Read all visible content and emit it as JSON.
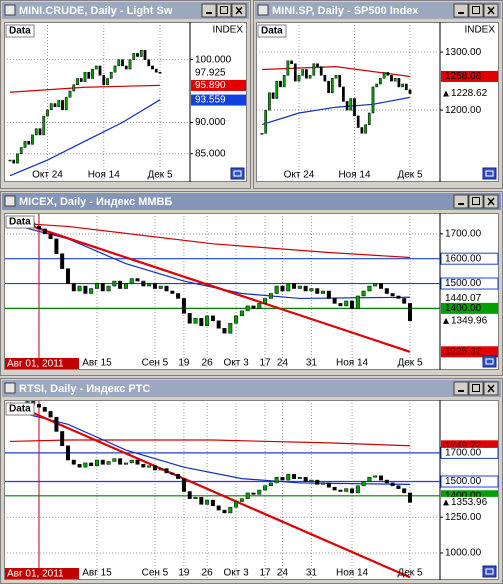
{
  "windows": [
    {
      "type": "candlestick",
      "title": "MINI.CRUDE, Daily - Light Sw",
      "data_label": "Data",
      "axis_header": "INDEX",
      "up_color": "#00a000",
      "down_color": "#000000",
      "ylim": [
        80.5,
        106
      ],
      "yticks": [
        {
          "value": 100,
          "label": "100.000"
        },
        {
          "value": 90,
          "label": "90.000"
        },
        {
          "value": 85,
          "label": "85.000"
        }
      ],
      "categories": [
        null,
        null,
        null,
        null,
        null,
        null,
        null,
        null,
        null,
        null,
        "Окт 24",
        null,
        null,
        null,
        null,
        null,
        null,
        null,
        null,
        null,
        null,
        null,
        null,
        null,
        null,
        "Ноя 14",
        null,
        null,
        null,
        null,
        null,
        null,
        null,
        null,
        null,
        null,
        null,
        null,
        null,
        null,
        "Дек 5"
      ],
      "closes": [
        84,
        83.5,
        85,
        86,
        87,
        86.5,
        88,
        89,
        88,
        91,
        92,
        93,
        92.5,
        93.5,
        92,
        94,
        95,
        96,
        97,
        96.5,
        98,
        97,
        98.5,
        99,
        97.5,
        96,
        97,
        98,
        99,
        100,
        99,
        98.5,
        100,
        101,
        100.5,
        101.5,
        100,
        99,
        98.5,
        98,
        97.9
      ],
      "ma": [
        {
          "color": "#d00000",
          "x": [
            0,
            20,
            40
          ],
          "values": [
            94.8,
            95.6,
            95.9
          ]
        },
        {
          "color": "#1030c0",
          "x": [
            0,
            10,
            20,
            30,
            40
          ],
          "values": [
            81.5,
            84,
            87,
            90,
            93.6
          ]
        }
      ],
      "levels": [],
      "trendlines": [],
      "tags": [
        {
          "value": 97.925,
          "label": "97.925",
          "bg": "#ffffff",
          "fg": "#000000"
        },
        {
          "value": 95.89,
          "label": "95.890",
          "bg": "#e00000",
          "fg": "#ffffff"
        },
        {
          "value": 93.559,
          "label": "93.559",
          "bg": "#1040e0",
          "fg": "#ffffff"
        }
      ]
    },
    {
      "type": "candlestick",
      "title": "MINI.SP, Daily - SP500 Index",
      "data_label": "Data",
      "axis_header": "INDEX",
      "up_color": "#00a000",
      "down_color": "#000000",
      "ylim": [
        1076,
        1352
      ],
      "yticks": [
        {
          "value": 1300,
          "label": "1300.00"
        },
        {
          "value": 1200,
          "label": "1200.00"
        }
      ],
      "categories": [
        null,
        null,
        null,
        null,
        null,
        null,
        null,
        null,
        null,
        null,
        "Окт 24",
        null,
        null,
        null,
        null,
        null,
        null,
        null,
        null,
        null,
        null,
        null,
        null,
        null,
        null,
        "Ноя 14",
        null,
        null,
        null,
        null,
        null,
        null,
        null,
        null,
        null,
        null,
        null,
        null,
        null,
        null,
        "Дек 5"
      ],
      "closes": [
        1160,
        1200,
        1230,
        1220,
        1250,
        1240,
        1260,
        1285,
        1280,
        1250,
        1260,
        1270,
        1255,
        1260,
        1280,
        1275,
        1260,
        1250,
        1230,
        1255,
        1260,
        1240,
        1215,
        1200,
        1220,
        1190,
        1170,
        1160,
        1175,
        1195,
        1240,
        1245,
        1255,
        1265,
        1260,
        1250,
        1255,
        1240,
        1245,
        1235,
        1228.62
      ],
      "ma": [
        {
          "color": "#d00000",
          "x": [
            0,
            20,
            40
          ],
          "values": [
            1270,
            1275,
            1258
          ]
        },
        {
          "color": "#1030c0",
          "x": [
            0,
            10,
            20,
            30,
            40
          ],
          "values": [
            1175,
            1195,
            1205,
            1210,
            1222
          ]
        }
      ],
      "levels": [],
      "trendlines": [],
      "tags": [
        {
          "value": 1258.08,
          "label": "1258.08",
          "bg": "#e00000",
          "fg": "#000000"
        },
        {
          "value": 1228.62,
          "label": "1228.62",
          "bg": "#ffffff",
          "fg": "#000000",
          "arrow": true
        }
      ]
    },
    {
      "type": "candlestick",
      "title": "MICEX, Daily - Индекс ММВБ",
      "data_label": "Data",
      "marker_color": "#c00000",
      "up_color": "#00a000",
      "down_color": "#000000",
      "ylim": [
        1152,
        1784
      ],
      "yticks": [
        {
          "value": 1700,
          "label": "1700.00"
        }
      ],
      "categories": [
        null,
        null,
        null,
        null,
        null,
        "Авг 01, 2011",
        null,
        null,
        null,
        null,
        null,
        null,
        null,
        null,
        null,
        "Авг 15",
        null,
        null,
        null,
        null,
        null,
        null,
        null,
        null,
        null,
        "Сен 5",
        null,
        null,
        null,
        null,
        "19",
        null,
        null,
        null,
        "26",
        null,
        null,
        null,
        null,
        "Окт 3",
        null,
        null,
        null,
        null,
        "17",
        null,
        null,
        "24",
        null,
        null,
        null,
        null,
        "31",
        null,
        null,
        null,
        null,
        null,
        null,
        "Ноя 14",
        null,
        null,
        null,
        null,
        null,
        null,
        null,
        null,
        null,
        "Дек 5"
      ],
      "closes": [
        1730,
        1740,
        1735,
        1745,
        1730,
        1720,
        1700,
        1680,
        1620,
        1560,
        1500,
        1470,
        1490,
        1460,
        1480,
        1500,
        1470,
        1490,
        1510,
        1480,
        1500,
        1520,
        1510,
        1490,
        1500,
        1480,
        1490,
        1470,
        1460,
        1440,
        1380,
        1340,
        1360,
        1330,
        1370,
        1350,
        1320,
        1300,
        1340,
        1370,
        1390,
        1410,
        1400,
        1420,
        1440,
        1460,
        1490,
        1470,
        1500,
        1480,
        1490,
        1470,
        1480,
        1460,
        1470,
        1440,
        1420,
        1410,
        1430,
        1400,
        1450,
        1470,
        1490,
        1500,
        1480,
        1460,
        1450,
        1440,
        1420,
        1349.96
      ],
      "ma": [
        {
          "color": "#d00000",
          "x": [
            0,
            10,
            35,
            55,
            69
          ],
          "values": [
            1745,
            1730,
            1660,
            1625,
            1605
          ]
        },
        {
          "color": "#1030c0",
          "x": [
            0,
            10,
            20,
            30,
            40,
            50,
            69
          ],
          "values": [
            1740,
            1680,
            1580,
            1510,
            1460,
            1440,
            1445
          ]
        }
      ],
      "levels": [
        {
          "value": 1600,
          "color": "#2040d0"
        },
        {
          "value": 1500,
          "color": "#2040d0"
        },
        {
          "value": 1400,
          "color": "#008000"
        }
      ],
      "trendlines": [
        {
          "color": "#e00000",
          "x": [
            0,
            69
          ],
          "values": [
            1760,
            1225.32
          ]
        }
      ],
      "tags": [
        {
          "value": 1600,
          "label": "1600.00",
          "bg": "#ffffff",
          "fg": "#000000",
          "border": "#2040d0"
        },
        {
          "value": 1500,
          "label": "1500.00",
          "bg": "#ffffff",
          "fg": "#000000",
          "border": "#2040d0"
        },
        {
          "value": 1440.07,
          "label": "1440.07",
          "bg": "#ffffff",
          "fg": "#000000"
        },
        {
          "value": 1400,
          "label": "1400.00",
          "bg": "#00a000",
          "fg": "#000000"
        },
        {
          "value": 1349.96,
          "label": "1349.96",
          "bg": "#ffffff",
          "fg": "#000000",
          "arrow": true
        },
        {
          "value": 1225.32,
          "label": "1225.32",
          "bg": "#e00000",
          "fg": "#600000"
        }
      ]
    },
    {
      "type": "candlestick",
      "title": "RTSI, Daily - Индекс РТС",
      "data_label": "Data",
      "marker_color": "#c00000",
      "up_color": "#00a000",
      "down_color": "#000000",
      "ylim": [
        811,
        2070
      ],
      "yticks": [
        {
          "value": 1250,
          "label": "1250.00"
        },
        {
          "value": 1000,
          "label": "1000.00"
        }
      ],
      "categories": [
        null,
        null,
        null,
        null,
        null,
        "Авг 01, 2011",
        null,
        null,
        null,
        null,
        null,
        null,
        null,
        null,
        null,
        "Авг 15",
        null,
        null,
        null,
        null,
        null,
        null,
        null,
        null,
        null,
        "Сен 5",
        null,
        null,
        null,
        null,
        "19",
        null,
        null,
        null,
        "26",
        null,
        null,
        null,
        null,
        "Окт 3",
        null,
        null,
        null,
        null,
        "17",
        null,
        null,
        "24",
        null,
        null,
        null,
        null,
        "31",
        null,
        null,
        null,
        null,
        null,
        null,
        "Ноя 14",
        null,
        null,
        null,
        null,
        null,
        null,
        null,
        null,
        null,
        "Дек 5"
      ],
      "closes": [
        2040,
        2050,
        2045,
        2060,
        2040,
        2020,
        1990,
        1950,
        1850,
        1750,
        1650,
        1620,
        1600,
        1630,
        1610,
        1650,
        1620,
        1640,
        1660,
        1620,
        1630,
        1650,
        1620,
        1600,
        1610,
        1580,
        1590,
        1560,
        1550,
        1520,
        1430,
        1380,
        1390,
        1340,
        1370,
        1330,
        1300,
        1280,
        1320,
        1360,
        1380,
        1420,
        1410,
        1440,
        1470,
        1490,
        1530,
        1510,
        1550,
        1520,
        1530,
        1500,
        1510,
        1480,
        1490,
        1460,
        1440,
        1430,
        1450,
        1420,
        1470,
        1500,
        1530,
        1540,
        1510,
        1490,
        1470,
        1450,
        1420,
        1353.96
      ],
      "ma": [
        {
          "color": "#d00000",
          "x": [
            0,
            10,
            35,
            55,
            69
          ],
          "values": [
            1780,
            1790,
            1790,
            1770,
            1750
          ]
        },
        {
          "color": "#1030c0",
          "x": [
            0,
            10,
            20,
            30,
            40,
            50,
            69
          ],
          "values": [
            2000,
            1900,
            1720,
            1600,
            1520,
            1490,
            1480
          ]
        }
      ],
      "levels": [
        {
          "value": 1700,
          "color": "#2040d0"
        },
        {
          "value": 1500,
          "color": "#2040d0"
        },
        {
          "value": 1400,
          "color": "#008000"
        }
      ],
      "trendlines": [
        {
          "color": "#e00000",
          "x": [
            0,
            69
          ],
          "values": [
            2050,
            830
          ]
        }
      ],
      "tags": [
        {
          "value": 1749.72,
          "label": "1749.72",
          "bg": "#e00000",
          "fg": "#600000"
        },
        {
          "value": 1700,
          "label": "1700.00",
          "bg": "#ffffff",
          "fg": "#000000",
          "border": "#2040d0"
        },
        {
          "value": 1500,
          "label": "1500.00",
          "bg": "#ffffff",
          "fg": "#000000",
          "border": "#2040d0"
        },
        {
          "value": 1400,
          "label": "1400.00",
          "bg": "#00a000",
          "fg": "#000000"
        },
        {
          "value": 1353.96,
          "label": "1353.96",
          "bg": "#ffffff",
          "fg": "#000000",
          "arrow": true
        }
      ]
    }
  ]
}
